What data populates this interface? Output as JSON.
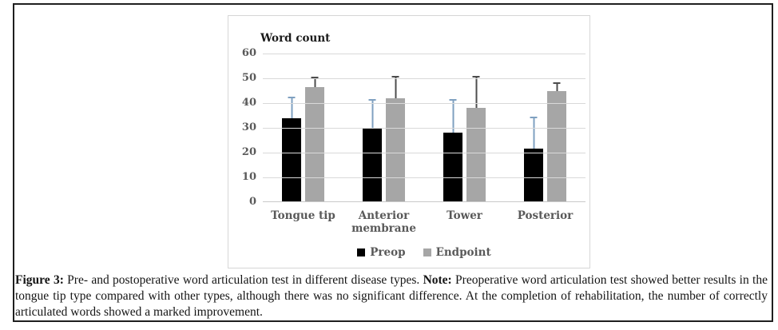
{
  "caption": {
    "figure_label": "Figure 3:",
    "text1": " Pre- and postoperative word articulation test in different disease types. ",
    "note_label": "Note:",
    "text2": " Preoperative word articulation test showed better results in the tongue tip type compared with other types, although there was no significant difference. At the completion of rehabilitation, the number of correctly articulated words showed a marked improvement."
  },
  "chart_data": {
    "type": "bar",
    "title": "Word count",
    "categories": [
      "Tongue tip",
      "Anterior membrane",
      "Tower",
      "Posterior"
    ],
    "series": [
      {
        "name": "Preop",
        "color": "#000000",
        "error_color": "#7fa0c0",
        "values": [
          34,
          30,
          28,
          21.5
        ],
        "error_tops": [
          42.5,
          41.5,
          41.5,
          34.5
        ]
      },
      {
        "name": "Endpoint",
        "color": "#a6a6a6",
        "error_color": "#4d4d4d",
        "values": [
          46.5,
          42,
          38,
          45
        ],
        "error_tops": [
          50.5,
          51,
          51,
          48.5
        ]
      }
    ],
    "ylim": [
      0,
      60
    ],
    "ytick_step": 10,
    "grid": true,
    "legend_position": "bottom",
    "colors": {
      "grid": "#d9d9d9",
      "tick_text": "#595959",
      "title_text": "#1a1a1a"
    }
  }
}
